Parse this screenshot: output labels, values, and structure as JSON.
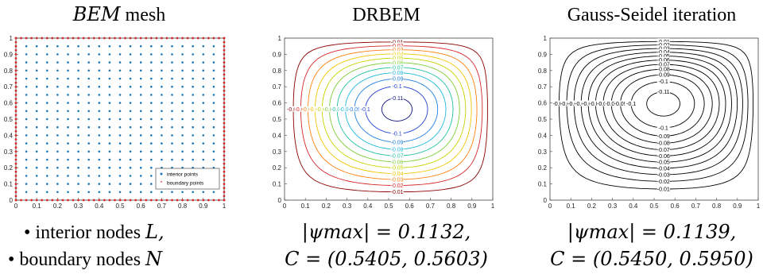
{
  "titles": {
    "mesh_italic": "BEM",
    "mesh_rest": " mesh",
    "drbem": "DRBEM",
    "gs": "Gauss-Seidel iteration"
  },
  "captions": {
    "mesh_line1": "• interior nodes ",
    "mesh_line1_sym": "L,",
    "mesh_line2": "• boundary nodes ",
    "mesh_line2_sym": "N",
    "drbem_line1": "|ψmax| = 0.1132,",
    "drbem_line2": "C = (0.5405, 0.5603)",
    "gs_line1": "|ψmax| = 0.1139,",
    "gs_line2": "C = (0.5450, 0.5950)"
  },
  "legend": {
    "interior": "interior points",
    "boundary": "boundary points"
  },
  "colors": {
    "interior": "#1f77b4",
    "boundary": "#d62728",
    "contour_black": "#000000"
  },
  "chart_data": [
    {
      "type": "scatter",
      "title": "BEM mesh",
      "xlim": [
        0,
        1
      ],
      "ylim": [
        0,
        1
      ],
      "xticks": [
        "0",
        "0.1",
        "0.2",
        "0.3",
        "0.4",
        "0.5",
        "0.6",
        "0.7",
        "0.8",
        "0.9",
        "1"
      ],
      "yticks": [
        "0",
        "0.1",
        "0.2",
        "0.3",
        "0.4",
        "0.5",
        "0.6",
        "0.7",
        "0.8",
        "0.9",
        "1"
      ],
      "series": [
        {
          "name": "interior points",
          "grid_x_start": 0.05,
          "grid_x_step": 0.05,
          "grid_x_count": 19,
          "grid_y_start": 0.05,
          "grid_y_step": 0.05,
          "grid_y_count": 19
        },
        {
          "name": "boundary points",
          "per_side": 40
        }
      ],
      "legend": "bottom-right"
    },
    {
      "type": "contour",
      "title": "DRBEM",
      "xlim": [
        0,
        1
      ],
      "ylim": [
        0,
        1
      ],
      "xticks": [
        "0",
        "0.1",
        "0.2",
        "0.3",
        "0.4",
        "0.5",
        "0.6",
        "0.7",
        "0.8",
        "0.9",
        "1"
      ],
      "yticks": [
        "0",
        "0.1",
        "0.2",
        "0.3",
        "0.4",
        "0.5",
        "0.6",
        "0.7",
        "0.8",
        "0.9",
        "1"
      ],
      "levels": [
        -0.01,
        -0.02,
        -0.03,
        -0.04,
        -0.05,
        -0.06,
        -0.07,
        -0.08,
        -0.09,
        -0.1,
        -0.11
      ],
      "level_colors": [
        "#8b0000",
        "#d62728",
        "#ff7f0e",
        "#f2c500",
        "#c8d400",
        "#7ccd35",
        "#22c2a0",
        "#1fb8e0",
        "#1f7fe0",
        "#2040d0",
        "#10107a"
      ],
      "psi_max": 0.1132,
      "center": [
        0.5405,
        0.5603
      ]
    },
    {
      "type": "contour",
      "title": "Gauss-Seidel iteration",
      "xlim": [
        0,
        1
      ],
      "ylim": [
        0,
        1
      ],
      "xticks": [
        "0",
        "0.1",
        "0.2",
        "0.3",
        "0.4",
        "0.5",
        "0.6",
        "0.7",
        "0.8",
        "0.9",
        "1"
      ],
      "yticks": [
        "0",
        "0.1",
        "0.2",
        "0.3",
        "0.4",
        "0.5",
        "0.6",
        "0.7",
        "0.8",
        "0.9",
        "1"
      ],
      "levels": [
        -0.01,
        -0.02,
        -0.03,
        -0.04,
        -0.05,
        -0.06,
        -0.07,
        -0.08,
        -0.09,
        -0.1,
        -0.11
      ],
      "psi_max": 0.1139,
      "center": [
        0.545,
        0.595
      ]
    }
  ]
}
